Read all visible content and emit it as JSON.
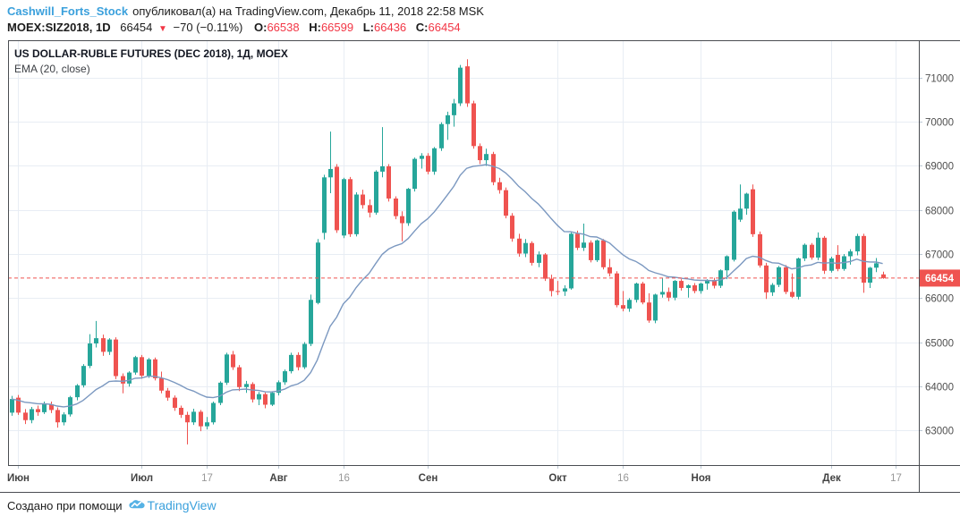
{
  "header": {
    "username": "Cashwill_Forts_Stock",
    "published": "опубликовал(а) на TradingView.com, Декабрь 11, 2018 22:58 MSK",
    "quote": {
      "symbol": "MOEX:SIZ2018, 1D",
      "last": "66454",
      "direction_icon": "▼",
      "change": "−70 (−0.11%)",
      "o_label": "O:",
      "open": "66538",
      "h_label": "H:",
      "high": "66599",
      "l_label": "L:",
      "low": "66436",
      "c_label": "C:",
      "close": "66454"
    }
  },
  "legend": {
    "title": "US DOLLAR-RUBLE FUTURES (DEC 2018), 1Д, MOEX",
    "indicator": "EMA (20, close)"
  },
  "footer": {
    "created_text": "Создано при помощи",
    "brand": "TradingView"
  },
  "price_axis": {
    "labels": [
      71000,
      70000,
      69000,
      68000,
      67000,
      66000,
      65000,
      64000,
      63000
    ]
  },
  "time_axis": {
    "ticks": [
      {
        "label": "Июн",
        "index": 1,
        "major": true
      },
      {
        "label": "Июл",
        "index": 20,
        "major": true
      },
      {
        "label": "17",
        "index": 30,
        "major": false
      },
      {
        "label": "Авг",
        "index": 41,
        "major": true
      },
      {
        "label": "16",
        "index": 51,
        "major": false
      },
      {
        "label": "Сен",
        "index": 64,
        "major": true
      },
      {
        "label": "Окт",
        "index": 84,
        "major": true
      },
      {
        "label": "16",
        "index": 94,
        "major": false
      },
      {
        "label": "Ноя",
        "index": 106,
        "major": true
      },
      {
        "label": "Дек",
        "index": 126,
        "major": true
      },
      {
        "label": "17",
        "index": 136,
        "major": false
      }
    ]
  },
  "colors": {
    "up": "#26a69a",
    "down": "#ef5350",
    "ema": "#7b98c0",
    "grid": "#e8edf4",
    "tick": "#b9c6d2",
    "frame": "#4a4d52",
    "axis_text": "#4f4f4f",
    "axis_text_minor": "#989898",
    "last_price_bg": "#ef5350",
    "header_red": "#f23645",
    "accent_blue": "#3aa0dc"
  },
  "chart_data": {
    "type": "candlestick",
    "title": "US DOLLAR-RUBLE FUTURES (DEC 2018)",
    "symbol": "MOEX:SIZ2018",
    "exchange": "MOEX",
    "interval": "1Д",
    "indicator": "EMA (20, close)",
    "ema_period": 20,
    "last_price": 66454,
    "last_price_label": "66454",
    "last_bar": {
      "open": 66538,
      "high": 66599,
      "low": 66436,
      "close": 66454
    },
    "ylim": [
      62210,
      71852
    ],
    "x_range": [
      "Июн 2018",
      "Дек 17 2018"
    ],
    "candles": [
      [
        63400,
        63780,
        63330,
        63710
      ],
      [
        63740,
        63800,
        63350,
        63400
      ],
      [
        63400,
        63480,
        63140,
        63230
      ],
      [
        63230,
        63530,
        63160,
        63480
      ],
      [
        63480,
        63560,
        63330,
        63410
      ],
      [
        63410,
        63650,
        63370,
        63590
      ],
      [
        63590,
        63650,
        63390,
        63460
      ],
      [
        63460,
        63520,
        63060,
        63180
      ],
      [
        63180,
        63410,
        63110,
        63360
      ],
      [
        63360,
        63780,
        63310,
        63750
      ],
      [
        63750,
        64050,
        63680,
        64020
      ],
      [
        64020,
        64500,
        63970,
        64460
      ],
      [
        64460,
        65180,
        64410,
        64970
      ],
      [
        64970,
        65480,
        64880,
        65090
      ],
      [
        65090,
        65170,
        64690,
        64780
      ],
      [
        64780,
        65090,
        64710,
        65060
      ],
      [
        65060,
        65110,
        64160,
        64230
      ],
      [
        64230,
        64290,
        63840,
        64060
      ],
      [
        64060,
        64340,
        63990,
        64310
      ],
      [
        64310,
        64690,
        64260,
        64660
      ],
      [
        64660,
        64710,
        64170,
        64240
      ],
      [
        64240,
        64640,
        64190,
        64610
      ],
      [
        64610,
        64650,
        64130,
        64180
      ],
      [
        64180,
        64330,
        63840,
        63900
      ],
      [
        63900,
        63960,
        63670,
        63740
      ],
      [
        63740,
        63790,
        63440,
        63510
      ],
      [
        63510,
        63560,
        63280,
        63350
      ],
      [
        63350,
        63420,
        62680,
        63180
      ],
      [
        63180,
        63490,
        63120,
        63420
      ],
      [
        63420,
        63460,
        62980,
        63090
      ],
      [
        63090,
        63300,
        63020,
        63180
      ],
      [
        63180,
        63650,
        63130,
        63620
      ],
      [
        63620,
        64110,
        63570,
        64080
      ],
      [
        64080,
        64760,
        64030,
        64720
      ],
      [
        64720,
        64800,
        64370,
        64430
      ],
      [
        64430,
        64480,
        63890,
        63980
      ],
      [
        63980,
        64120,
        63850,
        64050
      ],
      [
        64050,
        64090,
        63630,
        63700
      ],
      [
        63700,
        63870,
        63570,
        63820
      ],
      [
        63820,
        63860,
        63500,
        63580
      ],
      [
        63580,
        63880,
        63550,
        63850
      ],
      [
        63850,
        64130,
        63790,
        64090
      ],
      [
        64090,
        64380,
        64030,
        64340
      ],
      [
        64340,
        64760,
        64290,
        64710
      ],
      [
        64710,
        64770,
        64360,
        64430
      ],
      [
        64430,
        65000,
        64390,
        64960
      ],
      [
        64960,
        66080,
        64910,
        65960
      ],
      [
        65890,
        67340,
        65860,
        67260
      ],
      [
        67480,
        68800,
        67330,
        68740
      ],
      [
        68740,
        69780,
        68380,
        68930
      ],
      [
        68980,
        69040,
        67480,
        67540
      ],
      [
        67420,
        68730,
        67360,
        68700
      ],
      [
        68700,
        68750,
        67390,
        67450
      ],
      [
        67450,
        68400,
        67400,
        68350
      ],
      [
        68350,
        68460,
        68030,
        68110
      ],
      [
        68110,
        68240,
        67830,
        67940
      ],
      [
        67940,
        68900,
        67890,
        68870
      ],
      [
        68870,
        69880,
        68740,
        68990
      ],
      [
        68990,
        69040,
        68190,
        68260
      ],
      [
        68260,
        68310,
        67790,
        67860
      ],
      [
        67860,
        67970,
        67290,
        67700
      ],
      [
        67700,
        68500,
        67640,
        68480
      ],
      [
        68480,
        69190,
        68420,
        69160
      ],
      [
        69160,
        69290,
        68940,
        69230
      ],
      [
        69230,
        69290,
        68810,
        68870
      ],
      [
        68870,
        69430,
        68800,
        69400
      ],
      [
        69400,
        69990,
        69340,
        69950
      ],
      [
        69950,
        70230,
        69590,
        70150
      ],
      [
        70150,
        70520,
        69890,
        70420
      ],
      [
        70420,
        71290,
        70360,
        71230
      ],
      [
        71260,
        71420,
        70340,
        70420
      ],
      [
        70420,
        70480,
        69390,
        69450
      ],
      [
        69450,
        69510,
        69040,
        69130
      ],
      [
        69130,
        69390,
        69000,
        69270
      ],
      [
        69270,
        69320,
        68560,
        68630
      ],
      [
        68630,
        68730,
        68370,
        68450
      ],
      [
        68450,
        68510,
        67810,
        67870
      ],
      [
        67870,
        67930,
        67280,
        67350
      ],
      [
        67350,
        67460,
        66940,
        67010
      ],
      [
        67010,
        67340,
        66930,
        67250
      ],
      [
        67250,
        67290,
        66740,
        66800
      ],
      [
        66800,
        67060,
        66700,
        66990
      ],
      [
        66990,
        67020,
        66390,
        66440
      ],
      [
        66440,
        66530,
        66040,
        66160
      ],
      [
        66160,
        66390,
        66070,
        66150
      ],
      [
        66150,
        66290,
        66050,
        66220
      ],
      [
        66220,
        67490,
        66190,
        67460
      ],
      [
        67460,
        67530,
        67090,
        67140
      ],
      [
        67140,
        67690,
        67070,
        67260
      ],
      [
        67260,
        67310,
        66810,
        66860
      ],
      [
        66860,
        67330,
        66820,
        67310
      ],
      [
        67310,
        67340,
        66650,
        66700
      ],
      [
        66700,
        66890,
        66490,
        66560
      ],
      [
        66560,
        66610,
        65790,
        65840
      ],
      [
        65840,
        66160,
        65700,
        65760
      ],
      [
        65760,
        66000,
        65690,
        65960
      ],
      [
        65960,
        66350,
        65900,
        66330
      ],
      [
        66330,
        66370,
        65860,
        65900
      ],
      [
        65900,
        66110,
        65440,
        65490
      ],
      [
        65490,
        66100,
        65430,
        66080
      ],
      [
        66080,
        66460,
        66010,
        66140
      ],
      [
        66140,
        66240,
        65930,
        66010
      ],
      [
        66010,
        66410,
        65950,
        66390
      ],
      [
        66390,
        66430,
        66170,
        66230
      ],
      [
        66230,
        66310,
        66010,
        66290
      ],
      [
        66290,
        66340,
        66110,
        66160
      ],
      [
        66160,
        66350,
        66100,
        66330
      ],
      [
        66330,
        66430,
        66190,
        66410
      ],
      [
        66410,
        66460,
        66220,
        66280
      ],
      [
        66280,
        66650,
        66230,
        66630
      ],
      [
        66630,
        66970,
        66430,
        66950
      ],
      [
        66870,
        67990,
        66830,
        67960
      ],
      [
        67780,
        68580,
        67730,
        68030
      ],
      [
        68030,
        68390,
        67890,
        68370
      ],
      [
        68470,
        68580,
        67390,
        67450
      ],
      [
        67450,
        67510,
        66690,
        66740
      ],
      [
        66740,
        66800,
        65980,
        66130
      ],
      [
        66130,
        66340,
        66050,
        66300
      ],
      [
        66300,
        66730,
        66250,
        66700
      ],
      [
        66700,
        66750,
        66090,
        66140
      ],
      [
        66140,
        66560,
        66000,
        66030
      ],
      [
        66030,
        66920,
        65970,
        66900
      ],
      [
        66900,
        67240,
        66840,
        67210
      ],
      [
        67210,
        67250,
        66870,
        66920
      ],
      [
        66920,
        67490,
        66860,
        67370
      ],
      [
        67370,
        67410,
        66550,
        66620
      ],
      [
        66620,
        66940,
        66580,
        66900
      ],
      [
        66980,
        67200,
        66610,
        66660
      ],
      [
        66660,
        67000,
        66620,
        66950
      ],
      [
        66950,
        67110,
        66760,
        67060
      ],
      [
        67060,
        67460,
        66970,
        67410
      ],
      [
        67410,
        67460,
        66120,
        66350
      ],
      [
        66350,
        66710,
        66230,
        66690
      ],
      [
        66690,
        66910,
        66590,
        66790
      ],
      [
        66538,
        66599,
        66436,
        66454
      ]
    ]
  }
}
